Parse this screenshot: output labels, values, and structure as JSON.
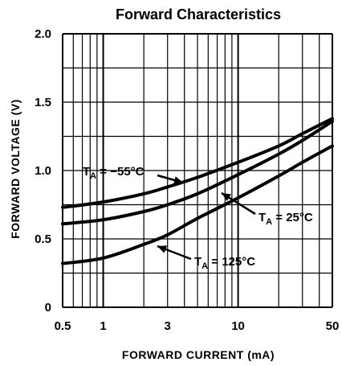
{
  "chart_data": {
    "type": "line",
    "title": "Forward Characteristics",
    "xlabel": "FORWARD CURRENT (mA)",
    "ylabel": "FORWARD VOLTAGE (V)",
    "x_scale": "log",
    "xlim": [
      0.5,
      50
    ],
    "ylim": [
      0,
      2.0
    ],
    "x_ticks": [
      0.5,
      1,
      3,
      10,
      50
    ],
    "x_tick_labels": [
      "0.5",
      "1",
      "3",
      "10",
      "50"
    ],
    "y_ticks": [
      0,
      0.5,
      1.0,
      1.5,
      2.0
    ],
    "y_tick_labels": [
      "0",
      "0.5",
      "1.0",
      "1.5",
      "2.0"
    ],
    "grid": true,
    "series": [
      {
        "name": "TA = −55°C",
        "label_main": "T",
        "label_sub": "A",
        "label_rest": " = −55°C",
        "x": [
          0.5,
          1,
          2,
          3,
          5,
          10,
          20,
          30,
          50
        ],
        "y": [
          0.73,
          0.77,
          0.83,
          0.88,
          0.95,
          1.06,
          1.18,
          1.27,
          1.38
        ]
      },
      {
        "name": "TA = 25°C",
        "label_main": "T",
        "label_sub": "A",
        "label_rest": " = 25°C",
        "x": [
          0.5,
          1,
          2,
          3,
          5,
          10,
          20,
          30,
          50
        ],
        "y": [
          0.61,
          0.64,
          0.7,
          0.75,
          0.83,
          0.97,
          1.12,
          1.22,
          1.36
        ]
      },
      {
        "name": "TA = 125°C",
        "label_main": "T",
        "label_sub": "A",
        "label_rest": " = 125°C",
        "x": [
          0.5,
          1,
          2,
          3,
          5,
          10,
          20,
          30,
          50
        ],
        "y": [
          0.32,
          0.36,
          0.46,
          0.53,
          0.65,
          0.8,
          0.96,
          1.06,
          1.18
        ]
      }
    ]
  }
}
